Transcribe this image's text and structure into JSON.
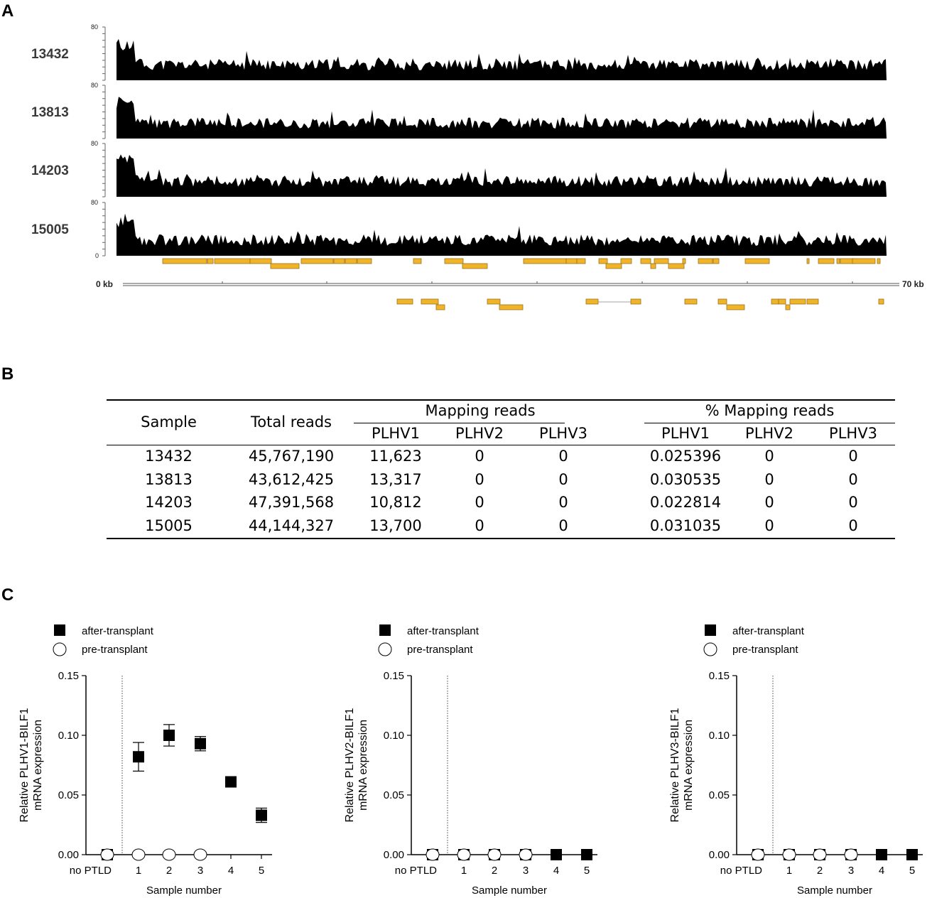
{
  "panels": {
    "a": "A",
    "b": "B",
    "c": "C"
  },
  "panel_a": {
    "y_max_label": "80",
    "y_min_label": "0",
    "tracks": [
      "13432",
      "13813",
      "14203",
      "15005"
    ],
    "scale_start": "0 kb",
    "scale_end": "70 kb"
  },
  "panel_b": {
    "headers": {
      "sample": "Sample",
      "total": "Total reads",
      "mapping": "Mapping reads",
      "pct_mapping": "% Mapping reads",
      "sub": [
        "PLHV1",
        "PLHV2",
        "PLHV3",
        "PLHV1",
        "PLHV2",
        "PLHV3"
      ]
    },
    "rows": [
      [
        "13432",
        "45,767,190",
        "11,623",
        "0",
        "0",
        "0.025396",
        "0",
        "0"
      ],
      [
        "13813",
        "43,612,425",
        "13,317",
        "0",
        "0",
        "0.030535",
        "0",
        "0"
      ],
      [
        "14203",
        "47,391,568",
        "10,812",
        "0",
        "0",
        "0.022814",
        "0",
        "0"
      ],
      [
        "15005",
        "44,144,327",
        "13,700",
        "0",
        "0",
        "0.031035",
        "0",
        "0"
      ]
    ]
  },
  "chart_data": [
    {
      "type": "scatter",
      "ylabel_line1": "Relative PLHV1-BILF1",
      "ylabel_line2": "mRNA expression",
      "xlabel": "Sample number",
      "categories": [
        "no PTLD",
        "1",
        "2",
        "3",
        "4",
        "5"
      ],
      "yticks": [
        "0.00",
        "0.05",
        "0.10",
        "0.15"
      ],
      "ylim": [
        0,
        0.15
      ],
      "legend": [
        "after-transplant",
        "pre-transplant"
      ],
      "series": [
        {
          "name": "after-transplant",
          "values": [
            0,
            0.082,
            0.1,
            0.093,
            0.061,
            0.033
          ],
          "err": [
            0,
            0.012,
            0.009,
            0.006,
            0.002,
            0.006
          ]
        },
        {
          "name": "pre-transplant",
          "values": [
            0,
            0,
            0,
            0,
            null,
            null
          ]
        }
      ]
    },
    {
      "type": "scatter",
      "ylabel_line1": "Relative PLHV2-BILF1",
      "ylabel_line2": "mRNA expression",
      "xlabel": "Sample number",
      "categories": [
        "no PTLD",
        "1",
        "2",
        "3",
        "4",
        "5"
      ],
      "yticks": [
        "0.00",
        "0.05",
        "0.10",
        "0.15"
      ],
      "ylim": [
        0,
        0.15
      ],
      "legend": [
        "after-transplant",
        "pre-transplant"
      ],
      "series": [
        {
          "name": "after-transplant",
          "values": [
            0,
            0,
            0,
            0,
            0,
            0
          ],
          "err": [
            0,
            0,
            0,
            0,
            0,
            0
          ]
        },
        {
          "name": "pre-transplant",
          "values": [
            0,
            0,
            0,
            0,
            null,
            null
          ]
        }
      ]
    },
    {
      "type": "scatter",
      "ylabel_line1": "Relative PLHV3-BILF1",
      "ylabel_line2": "mRNA expression",
      "xlabel": "Sample number",
      "categories": [
        "no PTLD",
        "1",
        "2",
        "3",
        "4",
        "5"
      ],
      "yticks": [
        "0.00",
        "0.05",
        "0.10",
        "0.15"
      ],
      "ylim": [
        0,
        0.15
      ],
      "legend": [
        "after-transplant",
        "pre-transplant"
      ],
      "series": [
        {
          "name": "after-transplant",
          "values": [
            0,
            0,
            0,
            0,
            0,
            0
          ],
          "err": [
            0,
            0,
            0,
            0,
            0,
            0
          ]
        },
        {
          "name": "pre-transplant",
          "values": [
            0,
            0,
            0,
            0,
            null,
            null
          ]
        }
      ]
    }
  ]
}
